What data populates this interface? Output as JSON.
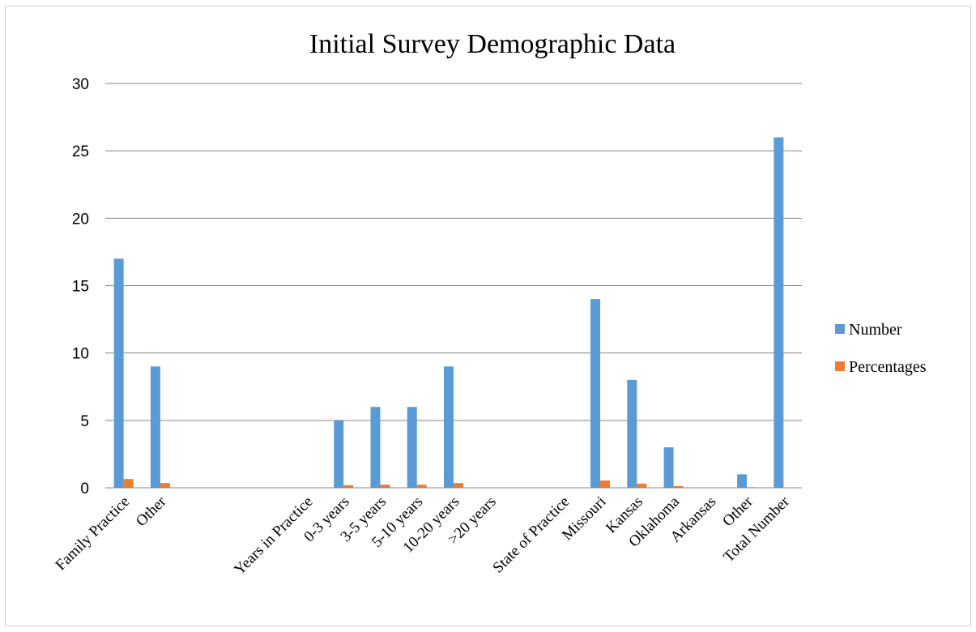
{
  "chart_data": {
    "type": "bar",
    "title": "Initial Survey Demographic Data",
    "xlabel": "",
    "ylabel": "",
    "ylim": [
      0,
      30
    ],
    "yticks": [
      0,
      5,
      10,
      15,
      20,
      25,
      30
    ],
    "grid": true,
    "legend_position": "right",
    "categories": [
      "Family Practice",
      "Other",
      "",
      "",
      "",
      "Years in Practice",
      "0-3 years",
      "3-5 years",
      "5-10 years",
      "10-20 years",
      ">20 years",
      "",
      "State of Practice",
      "Missouri",
      "Kansas",
      "Oklahoma",
      "Arkansas",
      "Other",
      "Total Number"
    ],
    "series": [
      {
        "name": "Number",
        "color": "#5b9bd5",
        "values": [
          17,
          9,
          null,
          null,
          null,
          null,
          5,
          6,
          6,
          9,
          0,
          null,
          null,
          14,
          8,
          3,
          0,
          1,
          26
        ]
      },
      {
        "name": "Percentages",
        "color": "#ed7d31",
        "values": [
          0.65,
          0.35,
          null,
          null,
          null,
          null,
          0.19,
          0.23,
          0.23,
          0.35,
          0,
          null,
          null,
          0.54,
          0.31,
          0.12,
          0,
          0.04,
          null
        ]
      }
    ]
  }
}
